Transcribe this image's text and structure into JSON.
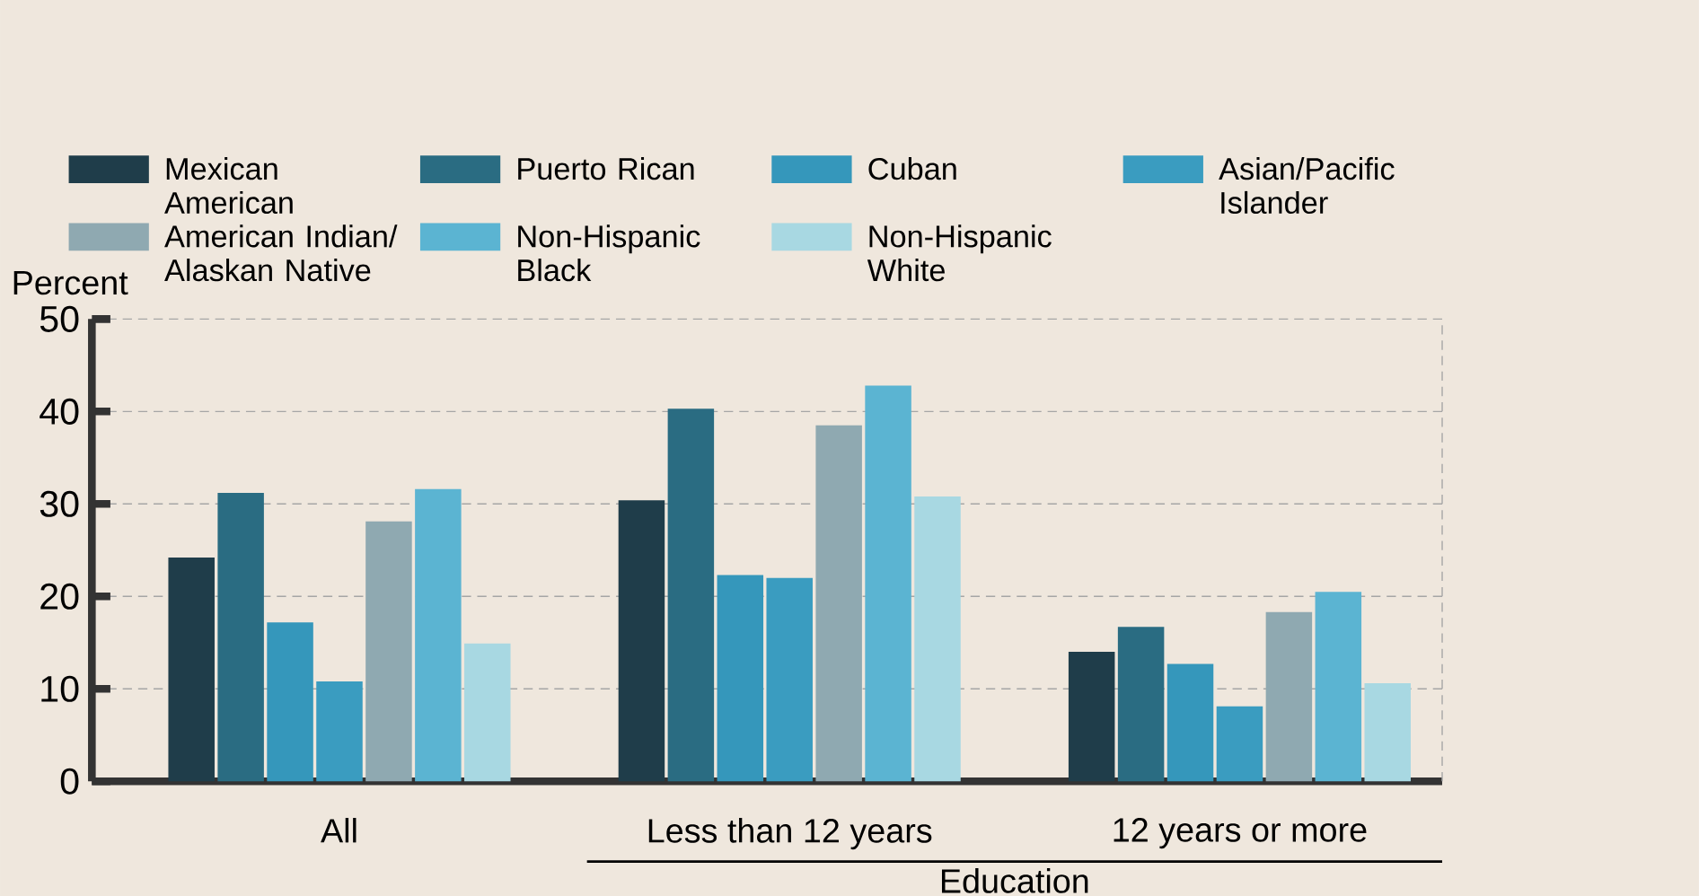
{
  "chart_data": {
    "type": "bar",
    "ylabel": "Percent",
    "categories": [
      "All",
      "Less than 12 years",
      "12 years or more"
    ],
    "series": [
      {
        "name": "Mexican American",
        "color": "#1f3d4a",
        "values": [
          24.2,
          30.4,
          14.0
        ]
      },
      {
        "name": "Puerto Rican",
        "color": "#2a6c82",
        "values": [
          31.2,
          40.3,
          16.7
        ]
      },
      {
        "name": "Cuban",
        "color": "#3597bb",
        "values": [
          17.2,
          22.3,
          12.7
        ]
      },
      {
        "name": "Asian/Pacific Islander",
        "color": "#3a9cc0",
        "values": [
          10.8,
          22.0,
          8.1
        ]
      },
      {
        "name": "American Indian/ Alaskan Native",
        "color": "#8fa9b1",
        "values": [
          28.1,
          38.5,
          18.3
        ]
      },
      {
        "name": "Non-Hispanic Black",
        "color": "#5bb4d2",
        "values": [
          31.6,
          42.8,
          20.5
        ]
      },
      {
        "name": "Non-Hispanic White",
        "color": "#a8d8e2",
        "values": [
          14.9,
          30.8,
          10.6
        ]
      }
    ],
    "ylim": [
      0,
      50
    ],
    "yticks": [
      0,
      10,
      20,
      30,
      40,
      50
    ],
    "grid": "y",
    "legend": "top",
    "annotations": [
      "Education"
    ]
  }
}
